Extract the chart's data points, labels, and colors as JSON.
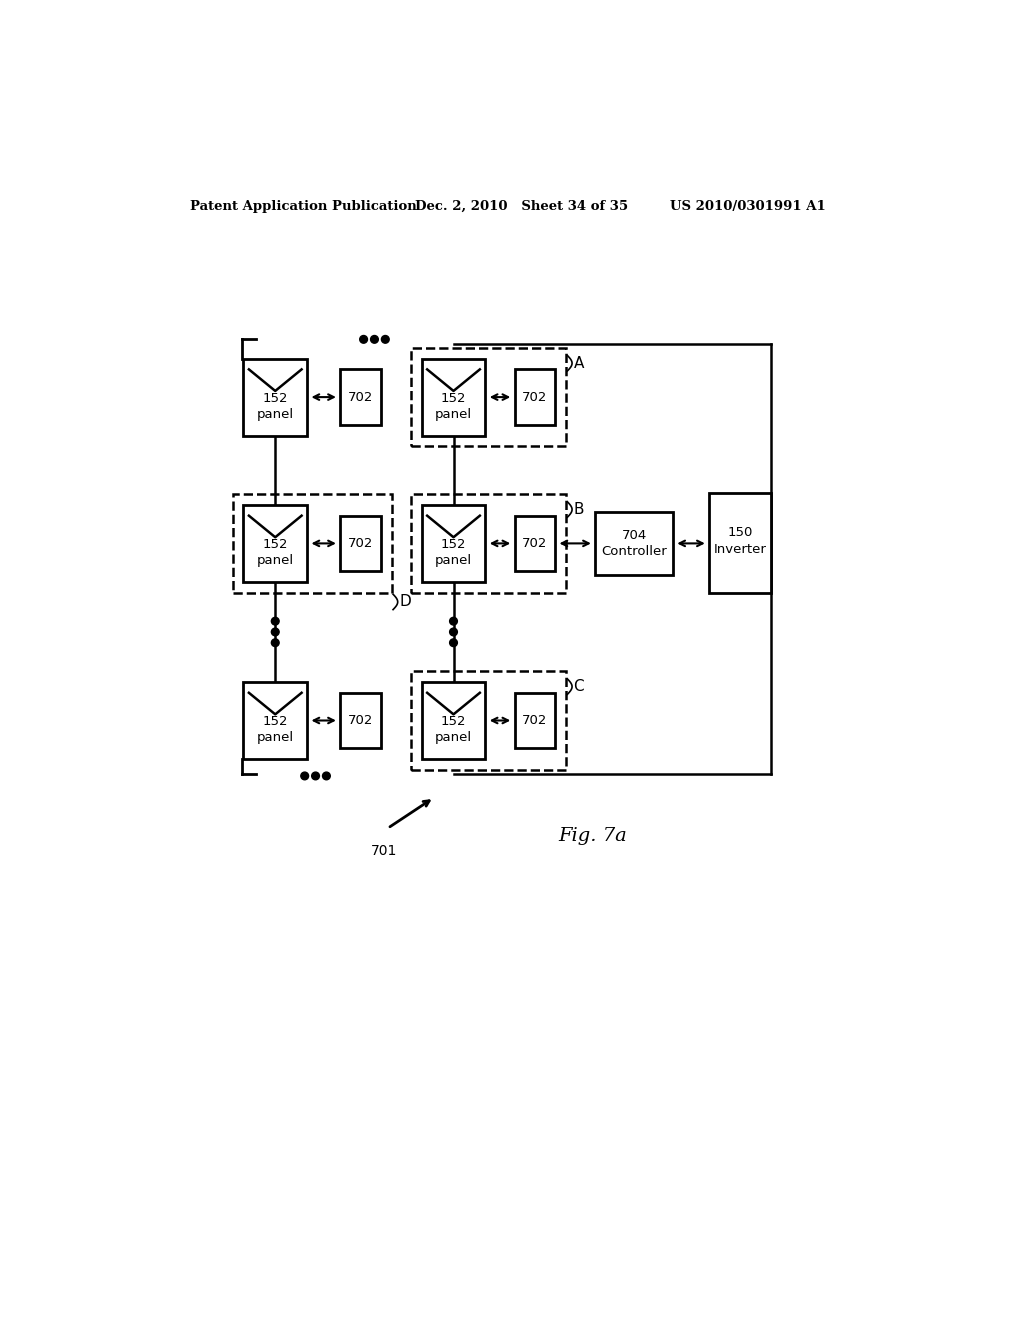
{
  "header_left": "Patent Application Publication",
  "header_middle": "Dec. 2, 2010   Sheet 34 of 35",
  "header_right": "US 2010/0301991 A1",
  "figure_label": "Fig. 7a",
  "arrow_label": "701",
  "background_color": "#ffffff",
  "text_color": "#000000"
}
